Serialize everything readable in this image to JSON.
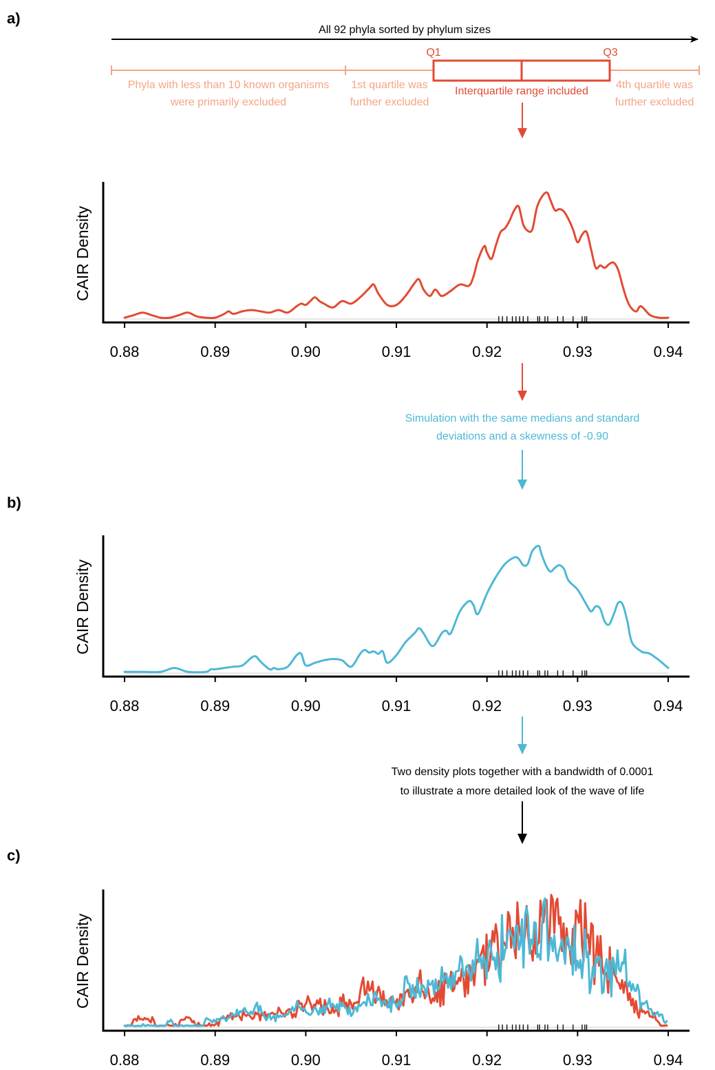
{
  "colors": {
    "red": "#e34a33",
    "salmon": "#f4a585",
    "blue": "#4db8d5",
    "black": "#000000"
  },
  "header": {
    "title": "All 92 phyla sorted by phylum sizes",
    "q1": "Q1",
    "q3": "Q3",
    "excluded_small_1": "Phyla with less than 10 known organisms",
    "excluded_small_2": "were primarily excluded",
    "first_quartile_1": "1st quartile was",
    "first_quartile_2": "further excluded",
    "iqr": "Interquartile range included",
    "fourth_quartile_1": "4th quartile was",
    "fourth_quartile_2": "further excluded"
  },
  "notes": {
    "simulation_1": "Simulation with the same medians and standard",
    "simulation_2": "deviations and a skewness of -0.90",
    "combined_1": "Two density plots together with a bandwidth of 0.0001",
    "combined_2": "to illustrate a more detailed look of the wave of life"
  },
  "panels": {
    "a": "a)",
    "b": "b)",
    "c": "c)"
  },
  "chart_data": [
    {
      "type": "area",
      "panel": "a",
      "ylabel": "CAIR Density",
      "xlabel": "",
      "xlim": [
        0.8775,
        0.9425
      ],
      "ylim": [
        0,
        1.04
      ],
      "x_ticks": [
        "0.88",
        "0.89",
        "0.90",
        "0.91",
        "0.92",
        "0.93",
        "0.94"
      ],
      "x_tick_values": [
        0.88,
        0.89,
        0.9,
        0.91,
        0.92,
        0.93,
        0.94
      ],
      "rug": [
        0.9213,
        0.9217,
        0.9222,
        0.9228,
        0.9232,
        0.9236,
        0.924,
        0.9245,
        0.9256,
        0.9258,
        0.9264,
        0.9267,
        0.9278,
        0.9284,
        0.9295,
        0.9305,
        0.9308,
        0.931
      ],
      "series": [
        {
          "color": "#e34a33",
          "x": [
            0.88,
            0.881,
            0.882,
            0.883,
            0.884,
            0.885,
            0.886,
            0.887,
            0.888,
            0.889,
            0.89,
            0.891,
            0.8915,
            0.892,
            0.893,
            0.894,
            0.895,
            0.896,
            0.897,
            0.898,
            0.899,
            0.8995,
            0.9,
            0.9005,
            0.901,
            0.9015,
            0.902,
            0.903,
            0.904,
            0.905,
            0.906,
            0.907,
            0.9075,
            0.908,
            0.909,
            0.91,
            0.911,
            0.912,
            0.9125,
            0.913,
            0.9137,
            0.9143,
            0.915,
            0.916,
            0.917,
            0.918,
            0.9185,
            0.919,
            0.9197,
            0.92,
            0.9205,
            0.921,
            0.9215,
            0.922,
            0.9225,
            0.923,
            0.9235,
            0.924,
            0.9245,
            0.925,
            0.9255,
            0.926,
            0.9266,
            0.927,
            0.9275,
            0.928,
            0.9285,
            0.929,
            0.9295,
            0.93,
            0.9305,
            0.931,
            0.9315,
            0.932,
            0.9325,
            0.933,
            0.9335,
            0.934,
            0.9345,
            0.935,
            0.9355,
            0.936,
            0.9365,
            0.937,
            0.938,
            0.939,
            0.94
          ],
          "y": [
            0.01,
            0.03,
            0.05,
            0.03,
            0.01,
            0.01,
            0.03,
            0.05,
            0.02,
            0.01,
            0.01,
            0.04,
            0.06,
            0.04,
            0.06,
            0.07,
            0.06,
            0.05,
            0.07,
            0.05,
            0.1,
            0.12,
            0.11,
            0.14,
            0.17,
            0.14,
            0.12,
            0.09,
            0.14,
            0.12,
            0.17,
            0.24,
            0.27,
            0.2,
            0.11,
            0.11,
            0.18,
            0.28,
            0.31,
            0.23,
            0.18,
            0.23,
            0.18,
            0.22,
            0.27,
            0.26,
            0.33,
            0.46,
            0.57,
            0.52,
            0.47,
            0.58,
            0.68,
            0.71,
            0.77,
            0.85,
            0.88,
            0.74,
            0.69,
            0.7,
            0.87,
            0.95,
            0.99,
            0.93,
            0.85,
            0.86,
            0.84,
            0.78,
            0.7,
            0.6,
            0.66,
            0.68,
            0.54,
            0.4,
            0.42,
            0.4,
            0.43,
            0.44,
            0.38,
            0.25,
            0.14,
            0.08,
            0.06,
            0.1,
            0.03,
            0.01,
            0.01
          ]
        }
      ]
    },
    {
      "type": "area",
      "panel": "b",
      "ylabel": "CAIR Density",
      "xlabel": "",
      "xlim": [
        0.8775,
        0.9425
      ],
      "ylim": [
        0,
        1.04
      ],
      "x_ticks": [
        "0.88",
        "0.89",
        "0.90",
        "0.91",
        "0.92",
        "0.93",
        "0.94"
      ],
      "x_tick_values": [
        0.88,
        0.89,
        0.9,
        0.91,
        0.92,
        0.93,
        0.94
      ],
      "rug": [
        0.9213,
        0.9217,
        0.9222,
        0.9228,
        0.9232,
        0.9236,
        0.924,
        0.9245,
        0.9256,
        0.9258,
        0.9264,
        0.9267,
        0.9278,
        0.9284,
        0.9295,
        0.9305,
        0.9308,
        0.931
      ],
      "series": [
        {
          "color": "#4db8d5",
          "x": [
            0.88,
            0.882,
            0.884,
            0.8855,
            0.887,
            0.889,
            0.8895,
            0.89,
            0.891,
            0.892,
            0.893,
            0.894,
            0.8945,
            0.895,
            0.896,
            0.8965,
            0.897,
            0.898,
            0.899,
            0.8995,
            0.9,
            0.901,
            0.902,
            0.903,
            0.904,
            0.905,
            0.906,
            0.9065,
            0.907,
            0.9075,
            0.908,
            0.9085,
            0.909,
            0.91,
            0.911,
            0.912,
            0.9125,
            0.913,
            0.914,
            0.915,
            0.9155,
            0.916,
            0.917,
            0.918,
            0.9185,
            0.919,
            0.92,
            0.921,
            0.922,
            0.923,
            0.9235,
            0.924,
            0.9245,
            0.925,
            0.9257,
            0.926,
            0.9265,
            0.927,
            0.9275,
            0.928,
            0.9285,
            0.929,
            0.93,
            0.931,
            0.9315,
            0.932,
            0.9325,
            0.933,
            0.9335,
            0.934,
            0.9345,
            0.935,
            0.9355,
            0.936,
            0.937,
            0.9375,
            0.938,
            0.939,
            0.94
          ],
          "y": [
            0.01,
            0.01,
            0.01,
            0.04,
            0.01,
            0.01,
            0.03,
            0.03,
            0.04,
            0.05,
            0.06,
            0.12,
            0.13,
            0.09,
            0.03,
            0.04,
            0.03,
            0.05,
            0.14,
            0.15,
            0.06,
            0.08,
            0.1,
            0.11,
            0.1,
            0.05,
            0.15,
            0.18,
            0.16,
            0.17,
            0.15,
            0.17,
            0.08,
            0.14,
            0.24,
            0.31,
            0.35,
            0.31,
            0.21,
            0.31,
            0.33,
            0.31,
            0.48,
            0.56,
            0.53,
            0.46,
            0.62,
            0.75,
            0.85,
            0.9,
            0.89,
            0.84,
            0.85,
            0.95,
            0.99,
            0.93,
            0.84,
            0.79,
            0.82,
            0.84,
            0.81,
            0.72,
            0.65,
            0.53,
            0.48,
            0.52,
            0.5,
            0.4,
            0.38,
            0.46,
            0.55,
            0.53,
            0.4,
            0.24,
            0.17,
            0.16,
            0.15,
            0.1,
            0.04
          ]
        }
      ]
    },
    {
      "type": "line",
      "panel": "c",
      "ylabel": "CAIR Density",
      "xlabel": "",
      "xlim": [
        0.8775,
        0.9425
      ],
      "ylim": [
        0,
        1.04
      ],
      "x_ticks": [
        "0.88",
        "0.89",
        "0.90",
        "0.91",
        "0.92",
        "0.93",
        "0.94"
      ],
      "x_tick_values": [
        0.88,
        0.89,
        0.9,
        0.91,
        0.92,
        0.93,
        0.94
      ],
      "rug": [
        0.9213,
        0.9217,
        0.9222,
        0.9228,
        0.9232,
        0.9236,
        0.924,
        0.9245,
        0.9256,
        0.9258,
        0.9264,
        0.9267,
        0.9278,
        0.9284,
        0.9295,
        0.9305,
        0.9308,
        0.931
      ],
      "series": [
        {
          "color": "#e34a33",
          "envelope_x": [
            0.88,
            0.881,
            0.882,
            0.883,
            0.884,
            0.885,
            0.886,
            0.887,
            0.888,
            0.889,
            0.89,
            0.891,
            0.892,
            0.893,
            0.894,
            0.895,
            0.896,
            0.897,
            0.898,
            0.899,
            0.9,
            0.901,
            0.902,
            0.903,
            0.904,
            0.905,
            0.906,
            0.907,
            0.908,
            0.909,
            0.91,
            0.911,
            0.912,
            0.913,
            0.914,
            0.915,
            0.916,
            0.917,
            0.918,
            0.919,
            0.92,
            0.921,
            0.922,
            0.923,
            0.924,
            0.925,
            0.926,
            0.927,
            0.928,
            0.929,
            0.93,
            0.931,
            0.932,
            0.933,
            0.934,
            0.935,
            0.936,
            0.937,
            0.938,
            0.939,
            0.94
          ],
          "envelope_y": [
            0.02,
            0.06,
            0.08,
            0.06,
            0.03,
            0.02,
            0.05,
            0.08,
            0.04,
            0.02,
            0.03,
            0.08,
            0.1,
            0.1,
            0.12,
            0.1,
            0.1,
            0.13,
            0.12,
            0.18,
            0.2,
            0.22,
            0.2,
            0.16,
            0.2,
            0.2,
            0.26,
            0.35,
            0.3,
            0.18,
            0.2,
            0.28,
            0.38,
            0.35,
            0.3,
            0.32,
            0.36,
            0.4,
            0.42,
            0.5,
            0.62,
            0.68,
            0.74,
            0.8,
            0.78,
            0.78,
            0.9,
            0.95,
            0.88,
            0.84,
            0.75,
            0.72,
            0.62,
            0.55,
            0.52,
            0.38,
            0.2,
            0.14,
            0.12,
            0.05,
            0.02
          ],
          "peak_x": 0.9265,
          "peak_y": 0.99
        },
        {
          "color": "#4db8d5",
          "envelope_x": [
            0.88,
            0.881,
            0.882,
            0.883,
            0.884,
            0.885,
            0.886,
            0.887,
            0.888,
            0.889,
            0.89,
            0.891,
            0.892,
            0.893,
            0.894,
            0.895,
            0.896,
            0.897,
            0.898,
            0.899,
            0.9,
            0.901,
            0.902,
            0.903,
            0.904,
            0.905,
            0.906,
            0.907,
            0.908,
            0.909,
            0.91,
            0.911,
            0.912,
            0.913,
            0.914,
            0.915,
            0.916,
            0.917,
            0.918,
            0.919,
            0.92,
            0.921,
            0.922,
            0.923,
            0.924,
            0.925,
            0.926,
            0.927,
            0.928,
            0.929,
            0.93,
            0.931,
            0.932,
            0.933,
            0.934,
            0.935,
            0.936,
            0.937,
            0.938,
            0.939,
            0.94
          ],
          "envelope_y": [
            0.02,
            0.02,
            0.02,
            0.02,
            0.03,
            0.06,
            0.03,
            0.03,
            0.02,
            0.06,
            0.06,
            0.08,
            0.1,
            0.12,
            0.16,
            0.14,
            0.08,
            0.08,
            0.1,
            0.2,
            0.16,
            0.14,
            0.16,
            0.18,
            0.16,
            0.12,
            0.22,
            0.26,
            0.24,
            0.18,
            0.2,
            0.32,
            0.38,
            0.4,
            0.32,
            0.36,
            0.4,
            0.46,
            0.54,
            0.56,
            0.6,
            0.66,
            0.7,
            0.74,
            0.8,
            0.78,
            0.82,
            0.76,
            0.74,
            0.68,
            0.66,
            0.6,
            0.5,
            0.46,
            0.52,
            0.54,
            0.34,
            0.22,
            0.18,
            0.12,
            0.04
          ],
          "peak_x": 0.9245,
          "peak_y": 0.86
        }
      ]
    }
  ]
}
